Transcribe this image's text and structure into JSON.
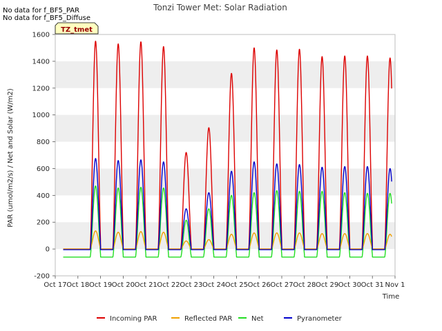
{
  "notes": [
    "No data for f_BF5_PAR",
    "No data for f_BF5_Diffuse"
  ],
  "tag": "TZ_tmet",
  "chart_data": {
    "type": "line",
    "title": "Tonzi Tower Met: Solar Radiation",
    "xlabel": "Time",
    "ylabel": "PAR (umol/m2/s) / Net and Solar (W/m2)",
    "xlim": [
      0,
      15
    ],
    "ylim": [
      -200,
      1600
    ],
    "x_tick_labels": [
      "Oct 17",
      "Oct 18",
      "Oct 19",
      "Oct 20",
      "Oct 21",
      "Oct 22",
      "Oct 23",
      "Oct 24",
      "Oct 25",
      "Oct 26",
      "Oct 27",
      "Oct 28",
      "Oct 29",
      "Oct 30",
      "Oct 31",
      "Nov 1"
    ],
    "y_ticks": [
      -200,
      0,
      200,
      400,
      600,
      800,
      1000,
      1200,
      1400,
      1600
    ],
    "grid": "horizontal bands",
    "legend_position": "bottom",
    "days": [
      "Oct 18",
      "Oct 19",
      "Oct 20",
      "Oct 21",
      "Oct 22",
      "Oct 23",
      "Oct 24",
      "Oct 25",
      "Oct 26",
      "Oct 27",
      "Oct 28",
      "Oct 29",
      "Oct 30",
      "Oct 31"
    ],
    "series": [
      {
        "name": "Incoming PAR",
        "color": "#dd0000",
        "night": 0,
        "daily_peak": [
          1550,
          1530,
          1545,
          1510,
          720,
          905,
          1310,
          1500,
          1485,
          1490,
          1435,
          1440,
          1440,
          1425
        ]
      },
      {
        "name": "Reflected PAR",
        "color": "#f0a000",
        "night": 0,
        "daily_peak": [
          135,
          125,
          130,
          125,
          60,
          70,
          110,
          120,
          120,
          120,
          115,
          115,
          115,
          110
        ]
      },
      {
        "name": "Net",
        "color": "#22dd22",
        "night": -60,
        "daily_peak": [
          470,
          455,
          460,
          455,
          215,
          300,
          400,
          420,
          435,
          430,
          430,
          420,
          415,
          415
        ]
      },
      {
        "name": "Pyranometer",
        "color": "#0000cc",
        "night": -5,
        "daily_peak": [
          675,
          660,
          665,
          650,
          300,
          420,
          580,
          650,
          635,
          630,
          610,
          615,
          615,
          600
        ]
      }
    ]
  }
}
